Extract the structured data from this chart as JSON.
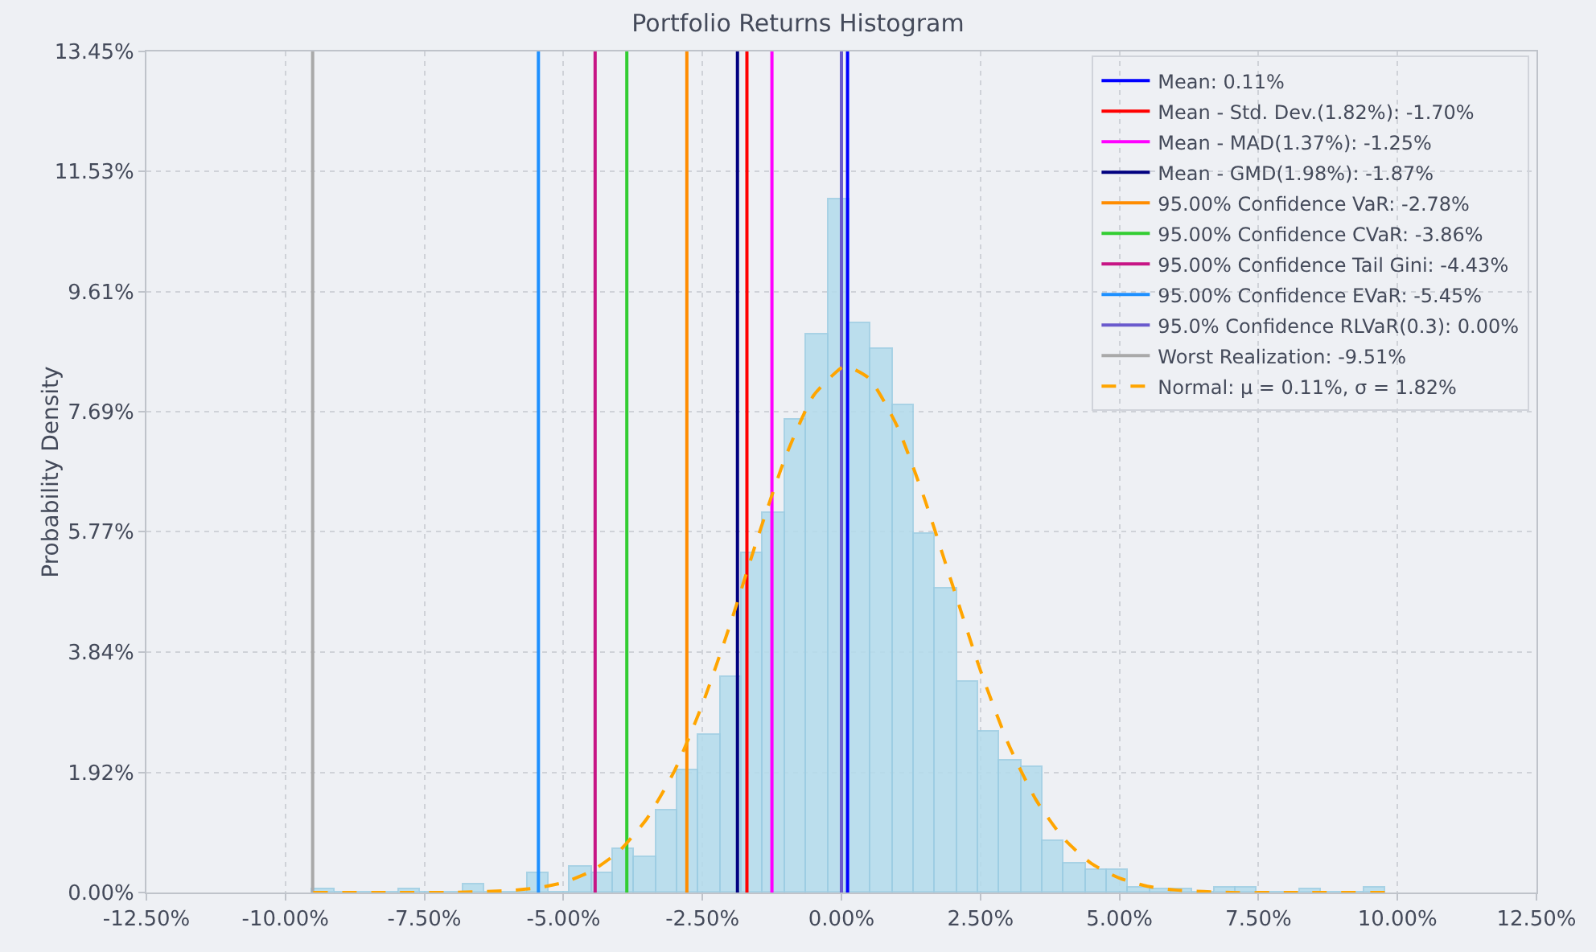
{
  "chart_data": {
    "type": "histogram",
    "title": "Portfolio Returns Histogram",
    "ylabel": "Probability Density",
    "color": "#b3dcec",
    "bins": [
      -9.51,
      -9.124,
      -8.738,
      -8.352,
      -7.966,
      -7.58,
      -7.194,
      -6.808,
      -6.422,
      -6.036,
      -5.65,
      -5.264,
      -4.878,
      -4.492,
      -4.106,
      -3.72,
      -3.334,
      -2.948,
      -2.562,
      -2.176,
      -1.79,
      -1.404,
      -1.018,
      -0.632,
      -0.246,
      0.14,
      0.526,
      0.912,
      1.298,
      1.684,
      2.07,
      2.456,
      2.842,
      3.228,
      3.614,
      4.0,
      4.386,
      4.772,
      5.158,
      5.544,
      5.93,
      6.316,
      6.702,
      7.088,
      7.474,
      7.86,
      8.246,
      8.632,
      9.018,
      9.404,
      9.79
    ],
    "values": [
      0.05,
      0,
      0,
      0,
      0.05,
      0,
      0,
      0.12,
      0,
      0,
      0.32,
      0,
      0.41,
      0.32,
      0.69,
      0.57,
      1.31,
      1.95,
      2.53,
      3.45,
      5.43,
      6.07,
      7.56,
      8.93,
      11.09,
      9.1,
      8.7,
      7.79,
      5.74,
      4.87,
      3.37,
      2.57,
      2.11,
      2.01,
      0.83,
      0.46,
      0.36,
      0.36,
      0.09,
      0.05,
      0.05,
      0,
      0.09,
      0.09,
      0,
      0,
      0.05,
      0,
      0,
      0.09
    ],
    "series": [
      {
        "name": "Mean: 0.11%",
        "type": "line",
        "color": "#0000ff",
        "x": [
          0.11,
          0.11
        ],
        "values": [
          0,
          13.45
        ]
      },
      {
        "name": "Mean - Std. Dev.(1.82%): -1.70%",
        "type": "line",
        "color": "#ff0000",
        "x": [
          -1.7,
          -1.7
        ],
        "values": [
          0,
          13.45
        ]
      },
      {
        "name": "Mean - MAD(1.37%): -1.25%",
        "type": "line",
        "color": "#ff00ff",
        "x": [
          -1.25,
          -1.25
        ],
        "values": [
          0,
          13.45
        ]
      },
      {
        "name": "Mean - GMD(1.98%): -1.87%",
        "type": "line",
        "color": "#000080",
        "x": [
          -1.87,
          -1.87
        ],
        "values": [
          0,
          13.45
        ]
      },
      {
        "name": "95.00% Confidence VaR: -2.78%",
        "type": "line",
        "color": "#ff8c00",
        "x": [
          -2.78,
          -2.78
        ],
        "values": [
          0,
          13.45
        ]
      },
      {
        "name": "95.00% Confidence CVaR: -3.86%",
        "type": "line",
        "color": "#32cd32",
        "x": [
          -3.86,
          -3.86
        ],
        "values": [
          0,
          13.45
        ]
      },
      {
        "name": "95.00% Confidence Tail Gini: -4.43%",
        "type": "line",
        "color": "#c71585",
        "x": [
          -4.43,
          -4.43
        ],
        "values": [
          0,
          13.45
        ]
      },
      {
        "name": "95.00% Confidence EVaR: -5.45%",
        "type": "line",
        "color": "#1e90ff",
        "x": [
          -5.45,
          -5.45
        ],
        "values": [
          0,
          13.45
        ]
      },
      {
        "name": "95.0% Confidence RLVaR(0.3): 0.00%",
        "type": "line",
        "color": "#6a5acd",
        "x": [
          0.0,
          0.0
        ],
        "values": [
          0,
          13.45
        ]
      },
      {
        "name": "Worst Realization: -9.51%",
        "type": "line",
        "color": "#a9a9a9",
        "x": [
          -9.51,
          -9.51
        ],
        "values": [
          0,
          13.45
        ]
      },
      {
        "name": "Normal: μ = 0.11%, σ = 1.82%",
        "type": "line",
        "line_style": "dashed",
        "color": "#ffa500",
        "x": [
          -9.5,
          -8,
          -7,
          -6,
          -5.5,
          -5,
          -4.5,
          -4,
          -3.5,
          -3,
          -2.5,
          -2,
          -1.5,
          -1,
          -0.5,
          0,
          0.11,
          0.5,
          1,
          1.5,
          2,
          2.5,
          3,
          3.5,
          4,
          4.5,
          5,
          5.5,
          6,
          7,
          8,
          9.8
        ],
        "values": [
          0,
          0,
          0,
          0.03,
          0.07,
          0.16,
          0.34,
          0.66,
          1.18,
          1.95,
          3.01,
          4.29,
          5.69,
          6.98,
          7.95,
          8.39,
          8.41,
          8.22,
          7.46,
          6.28,
          4.91,
          3.55,
          2.38,
          1.48,
          0.86,
          0.46,
          0.23,
          0.1,
          0.04,
          0,
          0,
          0
        ]
      }
    ],
    "xlim": [
      -12.5,
      12.5
    ],
    "xticks": [
      {
        "value": -12.5,
        "label": "-12.50%"
      },
      {
        "value": -10,
        "label": "-10.00%"
      },
      {
        "value": -7.5,
        "label": "-7.50%"
      },
      {
        "value": -5,
        "label": "-5.00%"
      },
      {
        "value": -2.5,
        "label": "-2.50%"
      },
      {
        "value": 0,
        "label": "0.00%"
      },
      {
        "value": 2.5,
        "label": "2.50%"
      },
      {
        "value": 5,
        "label": "5.00%"
      },
      {
        "value": 7.5,
        "label": "7.50%"
      },
      {
        "value": 10,
        "label": "10.00%"
      },
      {
        "value": 12.5,
        "label": "12.50%"
      }
    ],
    "ylim": [
      0,
      13.45
    ],
    "yticks": [
      {
        "value": 0,
        "label": "0.00%"
      },
      {
        "value": 1.92,
        "label": "1.92%"
      },
      {
        "value": 3.84,
        "label": "3.84%"
      },
      {
        "value": 5.77,
        "label": "5.77%"
      },
      {
        "value": 7.69,
        "label": "7.69%"
      },
      {
        "value": 9.61,
        "label": "9.61%"
      },
      {
        "value": 11.53,
        "label": "11.53%"
      },
      {
        "value": 13.45,
        "label": "13.45%"
      }
    ],
    "grid": true,
    "legend": "top right"
  }
}
